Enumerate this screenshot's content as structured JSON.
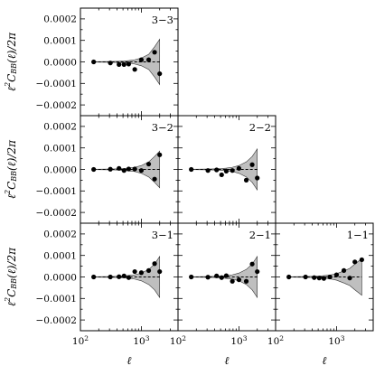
{
  "chart_data": {
    "type": "scatter",
    "xscale": "log",
    "xlim": [
      100,
      4000
    ],
    "ylim": [
      -0.00025,
      0.00025
    ],
    "yticks": [
      -0.0002,
      -0.0001,
      0.0,
      0.0001,
      0.0002
    ],
    "ytick_labels": [
      "−0.0002",
      "−0.0001",
      "0.0000",
      "0.0001",
      "0.0002"
    ],
    "xtick_labels": [
      {
        "base": "10",
        "exp": "2"
      },
      {
        "base": "10",
        "exp": "3"
      }
    ],
    "xlabel": "ℓ",
    "ylabel": "ℓ²C_BB(ℓ)/2π",
    "ylabel_parts": {
      "pre": "ℓ",
      "sq": "2",
      "c": "C",
      "sub": "BB",
      "post": "(ℓ)/2π"
    },
    "reference_line": 0,
    "band_color": "#bfbfbf",
    "point_color": "#000000",
    "panels": [
      {
        "label": "3−3",
        "row": 0,
        "col": 0,
        "x": [
          165,
          310,
          430,
          520,
          620,
          780,
          1000,
          1320,
          1650,
          2000
        ],
        "y": [
          0.0,
          -5e-06,
          -1.2e-05,
          -1.2e-05,
          -1e-05,
          -3.5e-05,
          1e-05,
          1e-05,
          4.5e-05,
          -5.5e-05
        ],
        "band": [
          1e-06,
          2e-06,
          3e-06,
          4e-06,
          6e-06,
          1e-05,
          1.8e-05,
          3.5e-05,
          7e-05,
          0.000105
        ]
      },
      {
        "label": "3−2",
        "row": 1,
        "col": 0,
        "x": [
          165,
          310,
          430,
          520,
          620,
          780,
          1000,
          1320,
          1650,
          2000
        ],
        "y": [
          0.0,
          1e-06,
          5e-06,
          -5e-06,
          2e-06,
          2e-06,
          -5e-06,
          2.5e-05,
          -4.5e-05,
          6.8e-05
        ],
        "band": [
          1e-06,
          2e-06,
          3e-06,
          4e-06,
          7e-06,
          1e-05,
          1.8e-05,
          3.5e-05,
          6e-05,
          8.5e-05
        ]
      },
      {
        "label": "2−2",
        "row": 1,
        "col": 1,
        "x": [
          165,
          310,
          430,
          520,
          620,
          780,
          1000,
          1320,
          1650,
          2000
        ],
        "y": [
          0.0,
          -5e-06,
          -2e-06,
          -2.5e-05,
          -8e-06,
          -5e-06,
          5e-06,
          -5e-05,
          2.2e-05,
          -4e-05
        ],
        "band": [
          1e-06,
          2e-06,
          3e-06,
          4e-06,
          6e-06,
          1e-05,
          1.8e-05,
          3.5e-05,
          6e-05,
          9.5e-05
        ]
      },
      {
        "label": "3−1",
        "row": 2,
        "col": 0,
        "x": [
          165,
          310,
          430,
          520,
          620,
          780,
          1000,
          1320,
          1650,
          2000
        ],
        "y": [
          0.0,
          0.0,
          1e-06,
          5e-06,
          -3e-06,
          2.5e-05,
          2e-05,
          3e-05,
          6.2e-05,
          2.5e-05
        ],
        "band": [
          1e-06,
          2e-06,
          3e-06,
          4e-06,
          7e-06,
          1e-05,
          1.8e-05,
          3.5e-05,
          6e-05,
          9.5e-05
        ]
      },
      {
        "label": "2−1",
        "row": 2,
        "col": 1,
        "x": [
          165,
          310,
          430,
          520,
          620,
          780,
          1000,
          1320,
          1650,
          2000
        ],
        "y": [
          0.0,
          -1e-06,
          5e-06,
          -3e-06,
          6e-06,
          -2e-05,
          -1.3e-05,
          -2e-05,
          6e-05,
          2.5e-05
        ],
        "band": [
          1e-06,
          2e-06,
          3e-06,
          4e-06,
          7e-06,
          1e-05,
          1.8e-05,
          3.5e-05,
          6e-05,
          9.5e-05
        ]
      },
      {
        "label": "1−1",
        "row": 2,
        "col": 2,
        "x": [
          165,
          310,
          430,
          520,
          620,
          780,
          1000,
          1320,
          1650,
          2000,
          2600
        ],
        "y": [
          0.0,
          0.0,
          -3e-06,
          -5e-06,
          -7e-06,
          0.0,
          1e-05,
          3e-05,
          -5e-06,
          7e-05,
          8e-05
        ],
        "band": [
          1e-06,
          2e-06,
          3e-06,
          4e-06,
          6e-06,
          9e-06,
          1.5e-05,
          2.8e-05,
          4e-05,
          6e-05,
          8.5e-05
        ]
      }
    ]
  }
}
